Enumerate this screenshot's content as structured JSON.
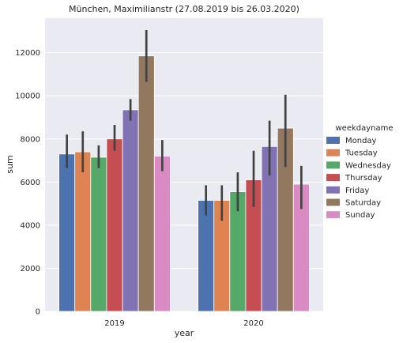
{
  "chart_data": {
    "type": "bar",
    "title": "München, Maximilianstr (27.08.2019 bis 26.03.2020)",
    "xlabel": "year",
    "ylabel": "sum",
    "categories": [
      "2019",
      "2020"
    ],
    "ylim": [
      0,
      13600
    ],
    "yticks": [
      0,
      2000,
      4000,
      6000,
      8000,
      10000,
      12000
    ],
    "legend_title": "weekdayname",
    "legend_position": "right",
    "grid": true,
    "background": "#eaeaf2",
    "series": [
      {
        "name": "Monday",
        "color": "#4c72b0",
        "values": [
          7300,
          5150
        ],
        "ci_low": [
          6650,
          4450
        ],
        "ci_high": [
          8200,
          5850
        ]
      },
      {
        "name": "Tuesday",
        "color": "#dd8452",
        "values": [
          7400,
          5150
        ],
        "ci_low": [
          6450,
          4200
        ],
        "ci_high": [
          8350,
          5850
        ]
      },
      {
        "name": "Wednesday",
        "color": "#55a868",
        "values": [
          7150,
          5550
        ],
        "ci_low": [
          6650,
          4650
        ],
        "ci_high": [
          7700,
          6450
        ]
      },
      {
        "name": "Thursday",
        "color": "#c44e52",
        "values": [
          8000,
          6100
        ],
        "ci_low": [
          7450,
          4850
        ],
        "ci_high": [
          8650,
          7450
        ]
      },
      {
        "name": "Friday",
        "color": "#8172b3",
        "values": [
          9350,
          7650
        ],
        "ci_low": [
          8850,
          6300
        ],
        "ci_high": [
          9850,
          8850
        ]
      },
      {
        "name": "Saturday",
        "color": "#937860",
        "values": [
          11850,
          8500
        ],
        "ci_low": [
          10650,
          6700
        ],
        "ci_high": [
          13050,
          10050
        ]
      },
      {
        "name": "Sunday",
        "color": "#da8bc3",
        "values": [
          7200,
          5900
        ],
        "ci_low": [
          6500,
          4750
        ],
        "ci_high": [
          7950,
          6750
        ]
      }
    ]
  }
}
